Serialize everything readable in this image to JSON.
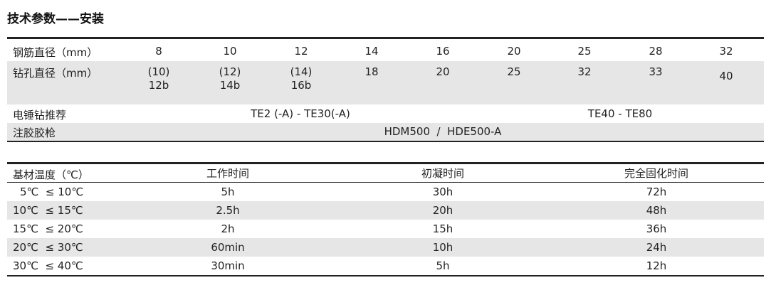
{
  "title": "技术参数——安装",
  "install": {
    "rebar_label": "钢筋直径（mm）",
    "rebar": [
      "8",
      "10",
      "12",
      "14",
      "16",
      "20",
      "25",
      "28",
      "32"
    ],
    "hole_label": "钻孔直径（mm）",
    "hole": [
      [
        "(10)",
        "12b"
      ],
      [
        "(12)",
        "14b"
      ],
      [
        "(14)",
        "16b"
      ],
      [
        "18",
        ""
      ],
      [
        "20",
        ""
      ],
      [
        "25",
        ""
      ],
      [
        "32",
        ""
      ],
      [
        "33",
        ""
      ],
      [
        "40",
        ""
      ]
    ],
    "drill_label": "电锤钻推荐",
    "drill_small": "TE2 (-A) - TE30(-A)",
    "drill_large": "TE40 - TE80",
    "gun_label": "注胶胶枪",
    "gun": "HDM500  /  HDE500-A"
  },
  "curing": {
    "headers": [
      "基材温度（℃）",
      "工作时间",
      "初凝时间",
      "完全固化时间"
    ],
    "rows": [
      [
        "5℃  ≤ 10℃",
        "5h",
        "30h",
        "72h"
      ],
      [
        "10℃  ≤ 15℃",
        "2.5h",
        "20h",
        "48h"
      ],
      [
        "15℃  ≤ 20℃",
        "2h",
        "15h",
        "36h"
      ],
      [
        "20℃  ≤ 30℃",
        "60min",
        "10h",
        "24h"
      ],
      [
        "30℃  ≤ 40℃",
        "30min",
        "5h",
        "12h"
      ]
    ]
  }
}
